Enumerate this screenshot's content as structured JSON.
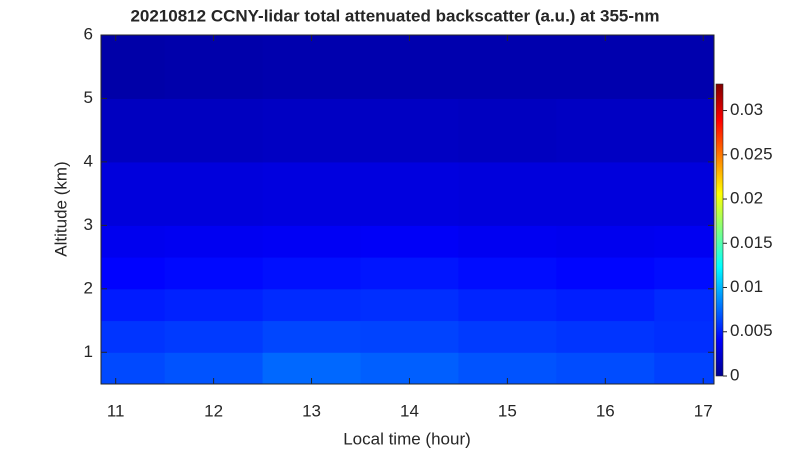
{
  "chart_data": {
    "type": "heatmap",
    "title": "20210812 CCNY-lidar total attenuated backscatter (a.u.) at 355-nm",
    "x_label": "Local time (hour)",
    "y_label": "Altitude (km)",
    "x_edges": [
      10.85,
      11.5,
      12.5,
      13.5,
      14.5,
      15.5,
      16.5,
      17.11
    ],
    "y_edges": [
      0.5,
      1,
      1.5,
      2,
      2.5,
      3,
      4,
      5,
      6
    ],
    "z": [
      [
        0.0065,
        0.0068,
        0.0075,
        0.0072,
        0.0068,
        0.0066,
        0.0062
      ],
      [
        0.0058,
        0.006,
        0.0064,
        0.0063,
        0.006,
        0.0058,
        0.0056
      ],
      [
        0.005,
        0.0052,
        0.0055,
        0.0056,
        0.0053,
        0.0051,
        0.0055
      ],
      [
        0.0042,
        0.0044,
        0.0046,
        0.0048,
        0.0045,
        0.0043,
        0.0045
      ],
      [
        0.0036,
        0.0037,
        0.0038,
        0.0039,
        0.0037,
        0.0036,
        0.0037
      ],
      [
        0.003,
        0.003,
        0.0031,
        0.0031,
        0.003,
        0.003,
        0.003
      ],
      [
        0.0021,
        0.0021,
        0.0022,
        0.0022,
        0.0021,
        0.0022,
        0.0022
      ],
      [
        0.0013,
        0.0014,
        0.0015,
        0.0015,
        0.0015,
        0.0015,
        0.0015
      ]
    ],
    "xlim": [
      10.85,
      17.11
    ],
    "xticks": [
      11,
      12,
      13,
      14,
      15,
      16,
      17
    ],
    "ylim": [
      0.5,
      6
    ],
    "yticks": [
      1,
      2,
      3,
      4,
      5,
      6
    ],
    "clim": [
      0,
      0.033
    ],
    "cticks": [
      0,
      0.005,
      0.01,
      0.015,
      0.02,
      0.025,
      0.03
    ],
    "colormap": "jet"
  }
}
